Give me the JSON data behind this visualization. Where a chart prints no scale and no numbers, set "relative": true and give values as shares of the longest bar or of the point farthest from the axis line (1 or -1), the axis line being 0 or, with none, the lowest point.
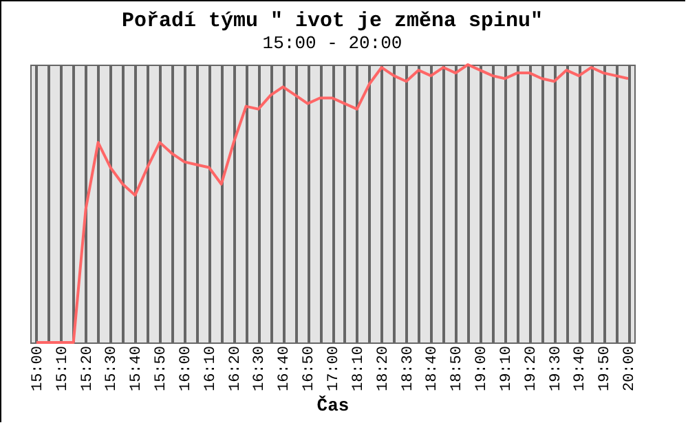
{
  "chart_data": {
    "type": "line",
    "title": "Pořadí týmu \" ivot je změna spinu\"",
    "subtitle": "15:00 - 20:00",
    "xlabel": "Čas",
    "relative": true,
    "grid": "x",
    "marker": "none",
    "line_style": "solid",
    "categories": [
      "15:00",
      null,
      "15:10",
      null,
      "15:20",
      null,
      "15:30",
      null,
      "15:40",
      null,
      "15:50",
      null,
      "16:00",
      null,
      "16:10",
      null,
      "16:20",
      null,
      "16:30",
      null,
      "16:40",
      null,
      "16:50",
      null,
      "17:00",
      null,
      "18:10",
      null,
      "18:20",
      null,
      "18:30",
      null,
      "18:40",
      null,
      "18:50",
      null,
      "19:00",
      null,
      "19:10",
      null,
      "19:20",
      null,
      "19:30",
      null,
      "19:40",
      null,
      "19:50",
      null,
      "20:00"
    ],
    "series": [
      {
        "color": "#ff6666",
        "values": [
          0,
          0,
          0,
          0,
          0.48,
          0.72,
          0.63,
          0.57,
          0.53,
          0.63,
          0.72,
          0.68,
          0.65,
          0.64,
          0.63,
          0.57,
          0.72,
          0.85,
          0.84,
          0.89,
          0.92,
          0.89,
          0.86,
          0.88,
          0.88,
          0.86,
          0.84,
          0.93,
          0.99,
          0.96,
          0.94,
          0.98,
          0.96,
          0.99,
          0.97,
          1,
          0.98,
          0.96,
          0.95,
          0.97,
          0.97,
          0.95,
          0.94,
          0.98,
          0.96,
          0.99,
          0.97,
          0.96,
          0.95
        ]
      }
    ]
  }
}
